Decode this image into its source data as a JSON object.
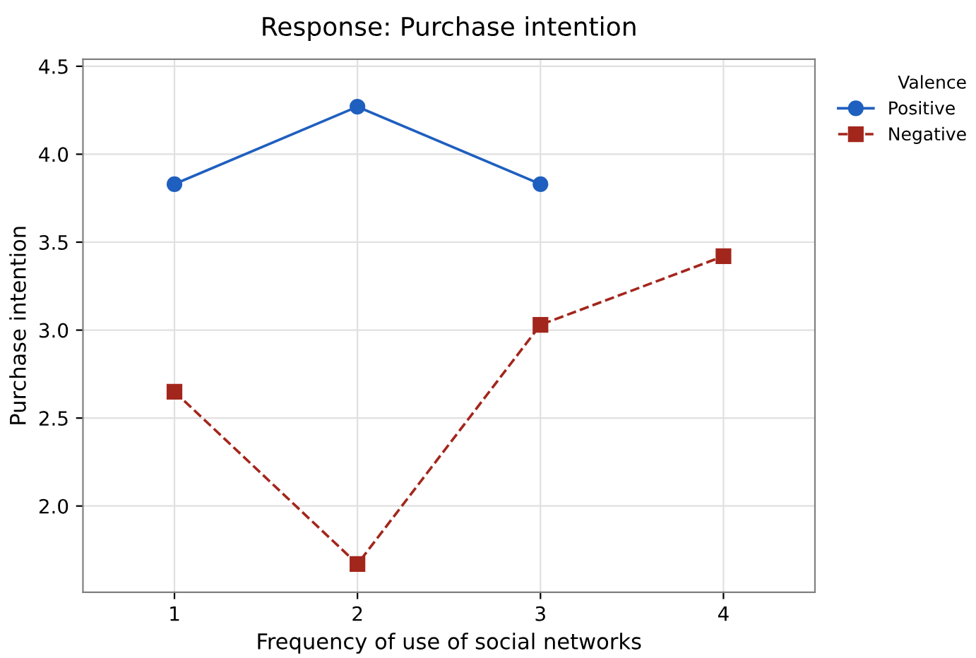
{
  "chart_data": {
    "type": "line",
    "title": "Response: Purchase intention",
    "xlabel": "Frequency of use of social networks",
    "ylabel": "Purchase intention",
    "legend_title": "Valence",
    "x": [
      1,
      2,
      3,
      4
    ],
    "series": [
      {
        "name": "Positive",
        "color": "#1f5fbf",
        "values": [
          3.83,
          4.27,
          3.83,
          null
        ],
        "marker": "circle",
        "line_style": "solid"
      },
      {
        "name": "Negative",
        "color": "#a3261c",
        "values": [
          2.65,
          1.67,
          3.03,
          3.42
        ],
        "marker": "square",
        "line_style": "dashed"
      }
    ],
    "xlim": [
      0.5,
      4.5
    ],
    "xticks": [
      1,
      2,
      3,
      4
    ],
    "ylim": [
      1.51,
      4.54
    ],
    "yticks": [
      {
        "value": 2.0,
        "label": "2.0"
      },
      {
        "value": 2.5,
        "label": "2.5"
      },
      {
        "value": 3.0,
        "label": "3.0"
      },
      {
        "value": 3.5,
        "label": "3.5"
      },
      {
        "value": 4.0,
        "label": "4.0"
      },
      {
        "value": 4.5,
        "label": "4.5"
      }
    ],
    "grid": true,
    "legend": "top right"
  }
}
